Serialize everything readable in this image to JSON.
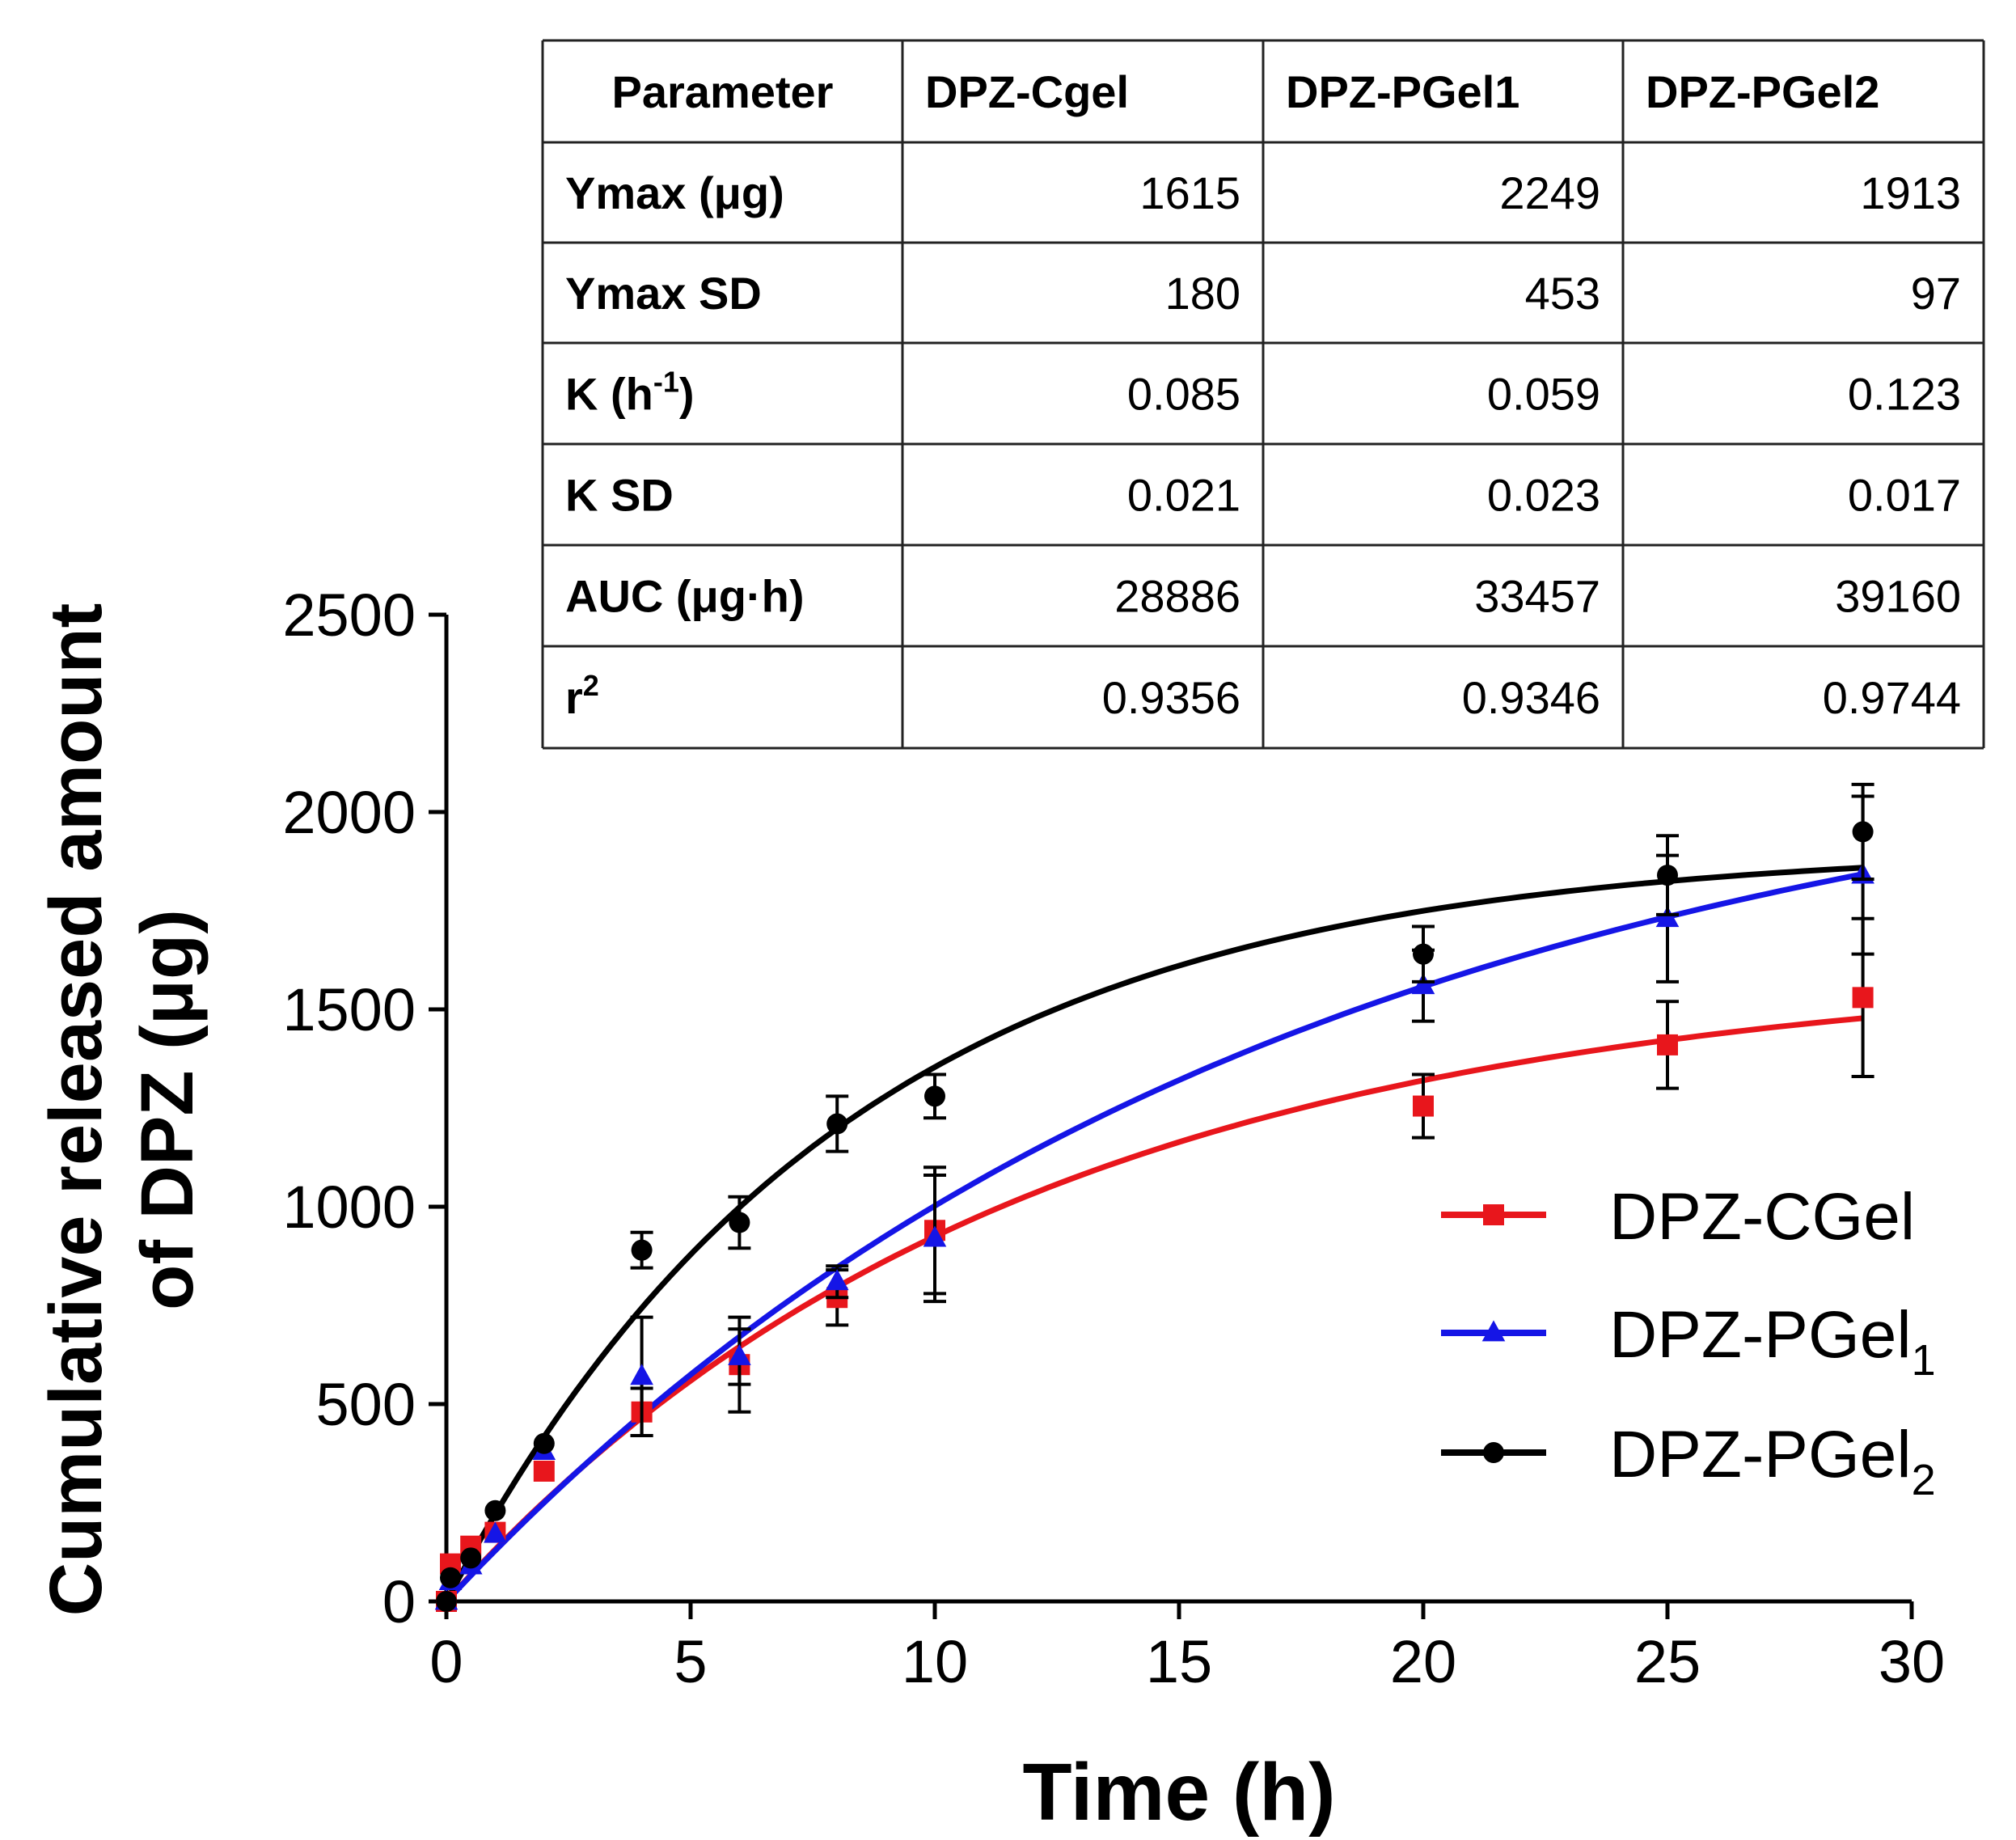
{
  "chart_data": {
    "type": "scatter",
    "title": "",
    "xlabel": "Time (h)",
    "ylabel_line1": "Cumulative released amount",
    "ylabel_line2": "of DPZ (μg)",
    "xlim": [
      0,
      30
    ],
    "ylim": [
      0,
      2500
    ],
    "xticks": [
      0,
      5,
      10,
      15,
      20,
      25,
      30
    ],
    "yticks": [
      0,
      500,
      1000,
      1500,
      2000,
      2500
    ],
    "grid": false,
    "legend_position": "right",
    "series": [
      {
        "name": "DPZ-CGel",
        "legend_main": "DPZ-CGel",
        "legend_sub": "",
        "color": "#e8161c",
        "marker": "square",
        "fit": {
          "model": "first-order",
          "ymax": 1615,
          "k": 0.085
        },
        "x": [
          0,
          0.083,
          0.5,
          1,
          2,
          4,
          6,
          8,
          10,
          20,
          25,
          29
        ],
        "y": [
          0,
          95,
          140,
          175,
          330,
          480,
          600,
          770,
          940,
          1255,
          1410,
          1530
        ],
        "err": [
          0,
          0,
          0,
          0,
          0,
          60,
          120,
          70,
          160,
          80,
          110,
          200
        ]
      },
      {
        "name": "DPZ-PGel1",
        "legend_main": "DPZ-PGel",
        "legend_sub": "1",
        "color": "#1515e6",
        "marker": "triangle",
        "fit": {
          "model": "first-order",
          "ymax": 2249,
          "k": 0.059
        },
        "x": [
          0,
          0.083,
          0.5,
          1,
          2,
          4,
          6,
          8,
          10,
          20,
          25,
          29
        ],
        "y": [
          0,
          50,
          90,
          170,
          380,
          570,
          620,
          810,
          920,
          1560,
          1730,
          1840
        ],
        "err": [
          0,
          0,
          0,
          0,
          0,
          150,
          70,
          40,
          160,
          90,
          160,
          200
        ]
      },
      {
        "name": "DPZ-PGel2",
        "legend_main": "DPZ-PGel",
        "legend_sub": "2",
        "color": "#000000",
        "marker": "circle",
        "fit": {
          "model": "first-order",
          "ymax": 1913,
          "k": 0.123
        },
        "x": [
          0,
          0.083,
          0.5,
          1,
          2,
          4,
          6,
          8,
          10,
          20,
          25,
          29
        ],
        "y": [
          0,
          60,
          110,
          230,
          400,
          890,
          960,
          1210,
          1280,
          1640,
          1840,
          1950
        ],
        "err": [
          0,
          0,
          0,
          0,
          0,
          45,
          65,
          70,
          55,
          70,
          100,
          120
        ]
      }
    ]
  },
  "table": {
    "headers": [
      "Parameter",
      "DPZ-Cgel",
      "DPZ-PGel1",
      "DPZ-PGel2"
    ],
    "rows": [
      {
        "label": "Ymax (μg)",
        "label_sup": "",
        "label_tail": "",
        "values": [
          "1615",
          "2249",
          "1913"
        ]
      },
      {
        "label": "Ymax SD",
        "label_sup": "",
        "label_tail": "",
        "values": [
          "180",
          "453",
          "97"
        ]
      },
      {
        "label": "K (h",
        "label_sup": "-1",
        "label_tail": ")",
        "values": [
          "0.085",
          "0.059",
          "0.123"
        ]
      },
      {
        "label": "K SD",
        "label_sup": "",
        "label_tail": "",
        "values": [
          "0.021",
          "0.023",
          "0.017"
        ]
      },
      {
        "label": "AUC (μg·h)",
        "label_sup": "",
        "label_tail": "",
        "values": [
          "28886",
          "33457",
          "39160"
        ]
      },
      {
        "label": "r",
        "label_sup": "2",
        "label_tail": "",
        "values": [
          "0.9356",
          "0.9346",
          "0.9744"
        ]
      }
    ]
  }
}
